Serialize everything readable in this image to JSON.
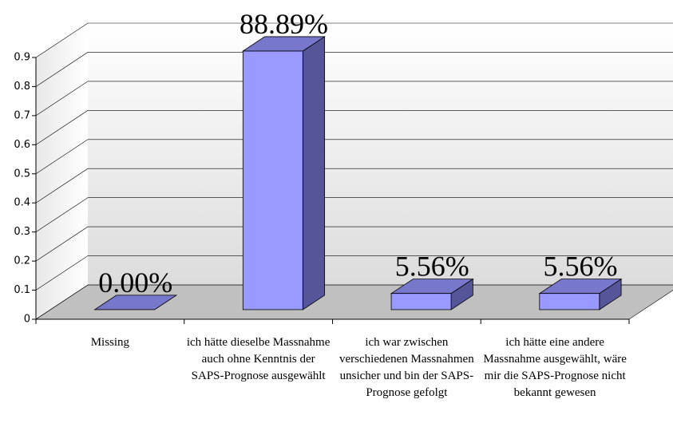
{
  "chart_data": {
    "type": "bar3d",
    "categories": [
      "Missing",
      "ich hätte dieselbe Massnahme auch ohne Kenntnis der SAPS-Prognose ausgewählt",
      "ich war zwischen verschiedenen Massnahmen unsicher und bin der SAPS-Prognose gefolgt",
      "ich hätte eine andere Massnahme ausgewählt, wäre mir die SAPS-Prognose nicht bekannt gewesen"
    ],
    "values": [
      0,
      0.8889,
      0.0556,
      0.0556
    ],
    "value_labels": [
      "0.00%",
      "88.89%",
      "5.56%",
      "5.56%"
    ],
    "color": "#9999ff",
    "ylim": [
      0,
      0.9
    ],
    "yticks": [
      0,
      0.1,
      0.2,
      0.3,
      0.4,
      0.5,
      0.6,
      0.7,
      0.8,
      0.9
    ],
    "grid": true
  }
}
